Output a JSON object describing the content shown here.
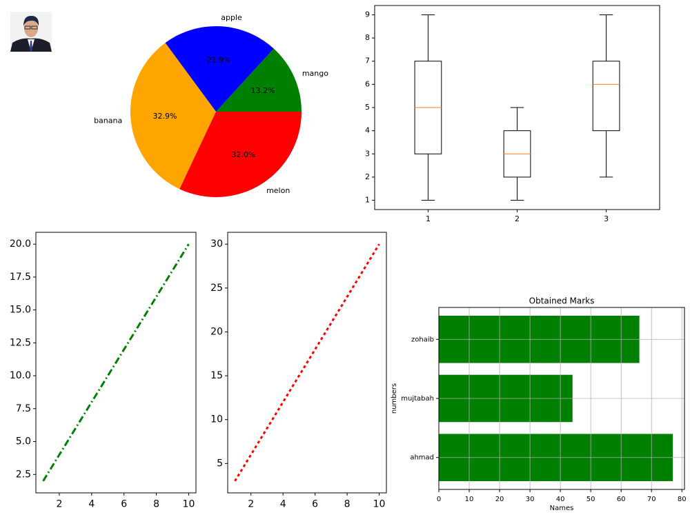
{
  "chart_data": [
    {
      "type": "pie",
      "labels": [
        "mango",
        "apple",
        "banana",
        "melon"
      ],
      "values": [
        13.2,
        21.9,
        32.9,
        32.0
      ],
      "value_labels": [
        "13.2%",
        "21.9%",
        "32.9%",
        "32.0%"
      ],
      "colors": [
        "green",
        "blue",
        "orange",
        "red"
      ]
    },
    {
      "type": "box",
      "categories": [
        "1",
        "2",
        "3"
      ],
      "boxes": [
        {
          "min": 1,
          "q1": 3,
          "median": 5,
          "q3": 7,
          "max": 9
        },
        {
          "min": 1,
          "q1": 2,
          "median": 3,
          "q3": 4,
          "max": 5
        },
        {
          "min": 2,
          "q1": 4,
          "median": 6,
          "q3": 7,
          "max": 9
        }
      ],
      "median_color": "#ff7f0e",
      "xlim": [
        0.4,
        3.6
      ],
      "ylim": [
        0.6,
        9.4
      ],
      "yticks": [
        1,
        2,
        3,
        4,
        5,
        6,
        7,
        8,
        9
      ]
    },
    {
      "type": "line",
      "x": [
        1,
        2,
        3,
        4,
        5,
        6,
        7,
        8,
        9,
        10
      ],
      "values": [
        2,
        4,
        6,
        8,
        10,
        12,
        14,
        16,
        18,
        20
      ],
      "color": "green",
      "linestyle": "dashdot",
      "xlim": [
        0.55,
        10.45
      ],
      "ylim": [
        1.1,
        20.9
      ],
      "xticks": [
        2,
        4,
        6,
        8,
        10
      ],
      "yticks": [
        2.5,
        {
          "value": 5,
          "label": "5.0"
        },
        7.5,
        {
          "value": 10,
          "label": "10.0"
        },
        12.5,
        {
          "value": 15,
          "label": "15.0"
        },
        17.5,
        {
          "value": 20,
          "label": "20.0"
        }
      ]
    },
    {
      "type": "line",
      "x": [
        1,
        2,
        3,
        4,
        5,
        6,
        7,
        8,
        9,
        10
      ],
      "values": [
        3,
        6,
        9,
        12,
        15,
        18,
        21,
        24,
        27,
        30
      ],
      "color": "red",
      "linestyle": "dotted",
      "xlim": [
        0.55,
        10.45
      ],
      "ylim": [
        1.65,
        31.35
      ],
      "xticks": [
        2,
        4,
        6,
        8,
        10
      ],
      "yticks": [
        5,
        10,
        15,
        20,
        25,
        30
      ]
    },
    {
      "type": "barh",
      "title": "Obtained Marks",
      "xlabel": "Names",
      "ylabel": "numbers",
      "categories": [
        "ahmad",
        "mujtabah",
        "zohaib"
      ],
      "values": [
        77,
        44,
        66
      ],
      "color": "green",
      "xlim": [
        0,
        80.85
      ],
      "ylim": [
        -0.54,
        2.54
      ],
      "xticks": [
        0,
        10,
        20,
        30,
        40,
        50,
        60,
        70,
        80
      ],
      "grid": true
    }
  ]
}
